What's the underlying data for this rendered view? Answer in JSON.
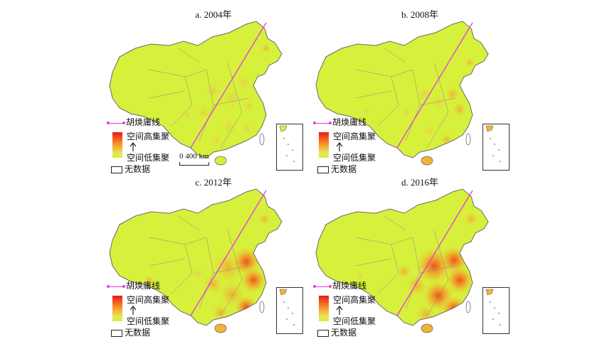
{
  "panels": [
    {
      "title": "a. 2004年"
    },
    {
      "title": "b. 2008年"
    },
    {
      "title": "c. 2012年"
    },
    {
      "title": "d. 2016年"
    }
  ],
  "legend": {
    "line_label": "胡焕庸线",
    "high_label": "空间高集聚",
    "low_label": "空间低集聚",
    "nodata_label": "无数据",
    "ramp_colors": [
      "#e51b1b",
      "#f36a1f",
      "#f7a933",
      "#e7e35a",
      "#d7f03c"
    ]
  },
  "scale_bar": {
    "label": "0 400 km"
  },
  "colors": {
    "base": "#d7f03c",
    "line": "#e83adf",
    "border": "#6b6b6b"
  }
}
